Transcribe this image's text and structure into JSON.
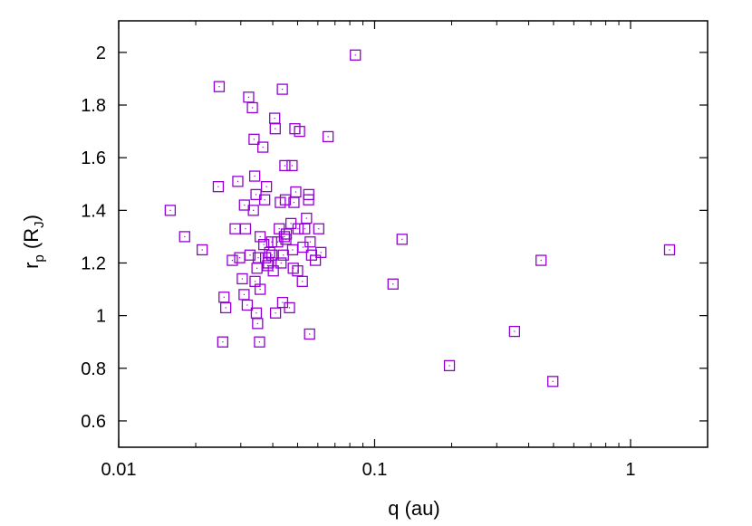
{
  "chart_data": {
    "type": "scatter",
    "title": "",
    "xlabel": "q (au)",
    "ylabel": {
      "base": "r",
      "base_sub": "p",
      "paren_open": " (R",
      "paren_sub": "J",
      "paren_close": ")"
    },
    "xscale": "log",
    "xlim": [
      0.01,
      2
    ],
    "ylim": [
      0.5,
      2.12
    ],
    "xticks": [
      0.01,
      0.1,
      1
    ],
    "xtick_labels": [
      "0.01",
      "0.1",
      "1"
    ],
    "yticks": [
      0.6,
      0.8,
      1,
      1.2,
      1.4,
      1.6,
      1.8,
      2
    ],
    "ytick_labels": [
      "0.6",
      "0.8",
      "1",
      "1.2",
      "1.4",
      "1.6",
      "1.8",
      "2"
    ],
    "grid": false,
    "legend": "none",
    "marker": "open-square",
    "color": "#9400d3",
    "x": [
      0.0159,
      0.0181,
      0.0212,
      0.0245,
      0.0247,
      0.0255,
      0.0258,
      0.0262,
      0.0278,
      0.0285,
      0.0292,
      0.0297,
      0.0304,
      0.0309,
      0.031,
      0.0313,
      0.0318,
      0.0322,
      0.0326,
      0.0333,
      0.0336,
      0.0338,
      0.034,
      0.0341,
      0.0344,
      0.0345,
      0.0347,
      0.0349,
      0.0351,
      0.0355,
      0.0357,
      0.0357,
      0.0366,
      0.0369,
      0.0372,
      0.0375,
      0.0378,
      0.0382,
      0.0385,
      0.0389,
      0.0396,
      0.0397,
      0.0402,
      0.0407,
      0.0409,
      0.041,
      0.0418,
      0.0424,
      0.0428,
      0.0431,
      0.0436,
      0.0437,
      0.044,
      0.0444,
      0.0446,
      0.0448,
      0.045,
      0.0452,
      0.0465,
      0.0471,
      0.0476,
      0.0478,
      0.0481,
      0.0484,
      0.0488,
      0.0492,
      0.05,
      0.0502,
      0.0509,
      0.0522,
      0.0525,
      0.0533,
      0.0542,
      0.0552,
      0.0553,
      0.0557,
      0.056,
      0.0567,
      0.0587,
      0.0605,
      0.0617,
      0.0658,
      0.0841,
      0.118,
      0.128,
      0.196,
      0.352,
      0.447,
      0.497,
      1.42
    ],
    "y": [
      1.4,
      1.3,
      1.25,
      1.49,
      1.87,
      0.9,
      1.07,
      1.03,
      1.21,
      1.33,
      1.51,
      1.22,
      1.14,
      1.08,
      1.42,
      1.33,
      1.04,
      1.83,
      1.23,
      1.79,
      1.4,
      1.67,
      1.53,
      1.13,
      1.46,
      1.01,
      1.18,
      0.97,
      1.22,
      0.9,
      1.1,
      1.3,
      1.64,
      1.27,
      1.44,
      1.22,
      1.49,
      1.19,
      1.2,
      1.24,
      1.28,
      1.23,
      1.17,
      1.75,
      1.71,
      1.01,
      1.28,
      1.33,
      1.43,
      1.2,
      1.86,
      1.05,
      1.23,
      1.3,
      1.57,
      1.44,
      1.29,
      1.31,
      1.03,
      1.35,
      1.57,
      1.25,
      1.18,
      1.43,
      1.71,
      1.47,
      1.17,
      1.33,
      1.7,
      1.13,
      1.26,
      1.33,
      1.37,
      1.44,
      1.46,
      0.93,
      1.28,
      1.23,
      1.21,
      1.33,
      1.24,
      1.68,
      1.99,
      1.12,
      1.29,
      0.81,
      0.94,
      1.21,
      0.75,
      1.25
    ]
  }
}
